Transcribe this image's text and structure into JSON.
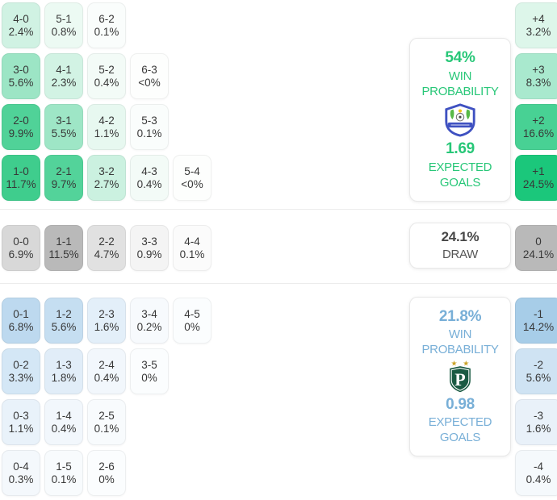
{
  "colors": {
    "home_accent": "#28c778",
    "away_accent": "#78afd7",
    "draw_text": "#474747",
    "home_strong_cell": "#1bc77b",
    "away_strong_cell": "#a7cde8",
    "draw_strong_cell": "#b9b9b9"
  },
  "home_summary": {
    "win_probability": "54%",
    "win_probability_label": "WIN PROBABILITY",
    "expected_goals": "1.69",
    "expected_goals_label": "EXPECTED GOALS",
    "crest": "home-team-crest"
  },
  "draw_summary": {
    "probability": "24.1%",
    "label": "DRAW"
  },
  "away_summary": {
    "win_probability": "21.8%",
    "win_probability_label": "WIN PROBABILITY",
    "expected_goals": "0.98",
    "expected_goals_label": "EXPECTED GOALS",
    "crest": "away-team-crest"
  },
  "grids": {
    "home_rows": [
      [
        {
          "label": "4-0",
          "pct": "2.4%",
          "bg": "#d0f2e3"
        },
        {
          "label": "5-1",
          "pct": "0.8%",
          "bg": "#ecfaf3"
        },
        {
          "label": "6-2",
          "pct": "0.1%",
          "bg": "#fafdfc"
        }
      ],
      [
        {
          "label": "3-0",
          "pct": "5.6%",
          "bg": "#9ce5c5"
        },
        {
          "label": "4-1",
          "pct": "2.3%",
          "bg": "#d2f3e4"
        },
        {
          "label": "5-2",
          "pct": "0.4%",
          "bg": "#f3fbf7"
        },
        {
          "label": "6-3",
          "pct": "<0%",
          "bg": "#fdfefd"
        }
      ],
      [
        {
          "label": "2-0",
          "pct": "9.9%",
          "bg": "#50d298"
        },
        {
          "label": "3-1",
          "pct": "5.5%",
          "bg": "#9ee6c6"
        },
        {
          "label": "4-2",
          "pct": "1.1%",
          "bg": "#e7f8f0"
        },
        {
          "label": "5-3",
          "pct": "0.1%",
          "bg": "#fafdfc"
        }
      ],
      [
        {
          "label": "1-0",
          "pct": "11.7%",
          "bg": "#3fcd8d"
        },
        {
          "label": "2-1",
          "pct": "9.7%",
          "bg": "#53d39a"
        },
        {
          "label": "3-2",
          "pct": "2.7%",
          "bg": "#cbf1e0"
        },
        {
          "label": "4-3",
          "pct": "0.4%",
          "bg": "#f3fbf7"
        },
        {
          "label": "5-4",
          "pct": "<0%",
          "bg": "#fdfefd"
        }
      ]
    ],
    "draw_rows": [
      [
        {
          "label": "0-0",
          "pct": "6.9%",
          "bg": "#d8d8d8"
        },
        {
          "label": "1-1",
          "pct": "11.5%",
          "bg": "#b9b9b9"
        },
        {
          "label": "2-2",
          "pct": "4.7%",
          "bg": "#e1e1e1"
        },
        {
          "label": "3-3",
          "pct": "0.9%",
          "bg": "#f4f4f4"
        },
        {
          "label": "4-4",
          "pct": "0.1%",
          "bg": "#fbfbfb"
        }
      ]
    ],
    "away_rows": [
      [
        {
          "label": "0-1",
          "pct": "6.8%",
          "bg": "#bdd9ef"
        },
        {
          "label": "1-2",
          "pct": "5.6%",
          "bg": "#c5def1"
        },
        {
          "label": "2-3",
          "pct": "1.6%",
          "bg": "#e3eff9"
        },
        {
          "label": "3-4",
          "pct": "0.2%",
          "bg": "#f7fafd"
        },
        {
          "label": "4-5",
          "pct": "0%",
          "bg": "#fbfdfe"
        }
      ],
      [
        {
          "label": "0-2",
          "pct": "3.3%",
          "bg": "#d4e7f6"
        },
        {
          "label": "1-3",
          "pct": "1.8%",
          "bg": "#e1edf8"
        },
        {
          "label": "2-4",
          "pct": "0.4%",
          "bg": "#f2f7fc"
        },
        {
          "label": "3-5",
          "pct": "0%",
          "bg": "#fbfdfe"
        }
      ],
      [
        {
          "label": "0-3",
          "pct": "1.1%",
          "bg": "#e9f2fa"
        },
        {
          "label": "1-4",
          "pct": "0.4%",
          "bg": "#f2f7fc"
        },
        {
          "label": "2-5",
          "pct": "0.1%",
          "bg": "#f8fbfd"
        }
      ],
      [
        {
          "label": "0-4",
          "pct": "0.3%",
          "bg": "#f4f8fc"
        },
        {
          "label": "1-5",
          "pct": "0.1%",
          "bg": "#f8fbfd"
        },
        {
          "label": "2-6",
          "pct": "0%",
          "bg": "#fbfdfe"
        }
      ]
    ]
  },
  "margins": {
    "home": [
      [
        {
          "label": "+4",
          "pct": "3.2%",
          "bg": "#ddf6ea"
        }
      ],
      [
        {
          "label": "+3",
          "pct": "8.3%",
          "bg": "#a9e9ce"
        }
      ],
      [
        {
          "label": "+2",
          "pct": "16.6%",
          "bg": "#48d194"
        }
      ],
      [
        {
          "label": "+1",
          "pct": "24.5%",
          "bg": "#1bc77b"
        }
      ]
    ],
    "draw": [
      [
        {
          "label": "0",
          "pct": "24.1%",
          "bg": "#b9b9b9"
        }
      ]
    ],
    "away": [
      [
        {
          "label": "-1",
          "pct": "14.2%",
          "bg": "#a7cde8"
        }
      ],
      [
        {
          "label": "-2",
          "pct": "5.6%",
          "bg": "#cfe3f3"
        }
      ],
      [
        {
          "label": "-3",
          "pct": "1.6%",
          "bg": "#e9f1f9"
        }
      ],
      [
        {
          "label": "-4",
          "pct": "0.4%",
          "bg": "#f5f9fc"
        }
      ]
    ]
  }
}
